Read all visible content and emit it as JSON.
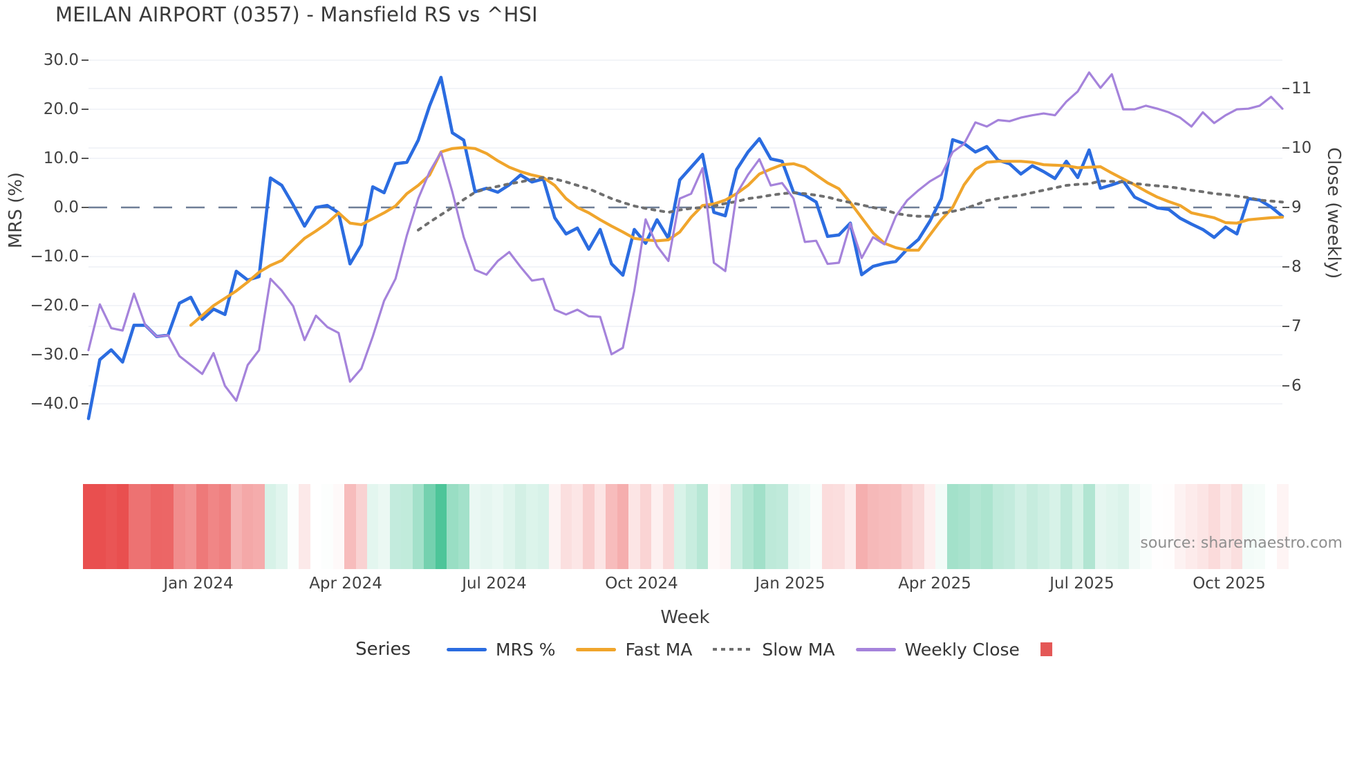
{
  "header": {
    "title": "MEILAN AIRPORT (0357) - Mansfield RS vs ^HSI"
  },
  "source_note": "source: sharemaestro.com",
  "chart_data": {
    "type": "line",
    "title": "MEILAN AIRPORT (0357) - Mansfield RS vs ^HSI",
    "xlabel": "Week",
    "ylabel_left": "MRS (%)",
    "ylabel_right": "Close (weekly)",
    "grid": true,
    "zero_line_dashed": true,
    "legend_position": "bottom",
    "legend_title": "Series",
    "x_axis": {
      "unit": "weekly, Nov 2023 - Nov 2025",
      "ticks": [
        {
          "label": "Jan 2024",
          "week": 9.67
        },
        {
          "label": "Apr 2024",
          "week": 22.62
        },
        {
          "label": "Jul 2024",
          "week": 35.69
        },
        {
          "label": "Oct 2024",
          "week": 48.64
        },
        {
          "label": "Jan 2025",
          "week": 61.71
        },
        {
          "label": "Apr 2025",
          "week": 74.42
        },
        {
          "label": "Jul 2025",
          "week": 87.37
        },
        {
          "label": "Oct 2025",
          "week": 100.32
        }
      ]
    },
    "y_left": {
      "ticks": [
        30.0,
        20.0,
        10.0,
        0.0,
        -10.0,
        -20.0,
        -30.0,
        -40.0
      ],
      "tick_labels": [
        "30.0",
        "20.0",
        "10.0",
        "0.0",
        "−10.0",
        "−20.0",
        "−30.0",
        "−40.0"
      ],
      "range": [
        -45.1,
        33.8
      ]
    },
    "y_right": {
      "ticks": [
        11,
        10,
        9,
        8,
        7,
        6
      ],
      "tick_labels": [
        "11",
        "10",
        "9",
        "8",
        "7",
        "6"
      ],
      "range": [
        5.28,
        11.79
      ]
    },
    "series": [
      {
        "name": "MRS %",
        "axis": "left",
        "color": "#2b6ce0",
        "width": 4.6,
        "dash": null,
        "values": [
          -43,
          -31,
          -29,
          -31.5,
          -24,
          -24,
          -26.3,
          -26,
          -19.5,
          -18.3,
          -22.8,
          -20.7,
          -21.8,
          -13,
          -14.8,
          -14.1,
          6,
          4.5,
          0.5,
          -3.8,
          0,
          0.4,
          -1.1,
          -11.5,
          -7.6,
          4.2,
          3,
          8.9,
          9.2,
          13.7,
          20.7,
          26.5,
          15.2,
          13.7,
          3.2,
          3.9,
          3.1,
          4.6,
          6.6,
          5.2,
          5.8,
          -2.1,
          -5.4,
          -4.2,
          -8.5,
          -4.5,
          -11.5,
          -13.8,
          -4.5,
          -7.3,
          -2.5,
          -6.3,
          5.6,
          8.2,
          10.8,
          -1,
          -1.7,
          7.7,
          11.3,
          14,
          9.9,
          9.4,
          3.1,
          2.5,
          1.1,
          -5.9,
          -5.6,
          -3.2,
          -13.7,
          -12,
          -11.4,
          -11,
          -8.5,
          -6.5,
          -2.8,
          1.8,
          13.8,
          13,
          11.3,
          12.4,
          9.6,
          8.9,
          6.8,
          8.5,
          7.3,
          5.9,
          9.4,
          6.1,
          11.7,
          3.9,
          4.6,
          5.4,
          2.1,
          1,
          -0.1,
          -0.4,
          -2.2,
          -3.4,
          -4.5,
          -6.1,
          -4,
          -5.4,
          1.8,
          1.5,
          0.1,
          -1.8
        ]
      },
      {
        "name": "Fast MA",
        "axis": "left",
        "color": "#f0a52c",
        "width": 4.2,
        "dash": null,
        "values": [
          null,
          null,
          null,
          null,
          null,
          null,
          null,
          null,
          null,
          -24,
          -22,
          -20,
          -18.5,
          -17,
          -15.2,
          -13.2,
          -11.8,
          -10.8,
          -8.5,
          -6.3,
          -4.8,
          -3.2,
          -1.1,
          -3.2,
          -3.5,
          -2.3,
          -1.1,
          0.3,
          2.8,
          4.5,
          6.6,
          11.3,
          12,
          12.2,
          12,
          11,
          9.5,
          8.2,
          7.3,
          6.6,
          6.1,
          4.5,
          1.8,
          0,
          -1.1,
          -2.5,
          -3.8,
          -5,
          -6.3,
          -6.6,
          -6.8,
          -6.6,
          -5,
          -2,
          0.4,
          0.7,
          1.5,
          2.8,
          4.5,
          6.8,
          7.8,
          8.7,
          8.9,
          8.2,
          6.6,
          5,
          3.8,
          1,
          -2.1,
          -5.2,
          -7.3,
          -8.2,
          -8.7,
          -8.7,
          -5.6,
          -2.5,
          0,
          4.6,
          7.7,
          9.2,
          9.4,
          9.4,
          9.4,
          9.2,
          8.7,
          8.6,
          8.5,
          8.1,
          8.2,
          8.3,
          7,
          5.8,
          4.6,
          3.3,
          2.1,
          1.2,
          0.4,
          -1.1,
          -1.6,
          -2.1,
          -3.1,
          -3.2,
          -2.5,
          -2.3,
          -2.1,
          -2
        ]
      },
      {
        "name": "Slow MA",
        "axis": "left",
        "color": "#6f6f6f",
        "width": 4,
        "dash": "4.5 8.5",
        "values": [
          null,
          null,
          null,
          null,
          null,
          null,
          null,
          null,
          null,
          null,
          null,
          null,
          null,
          null,
          null,
          null,
          null,
          null,
          null,
          null,
          null,
          null,
          null,
          null,
          null,
          null,
          null,
          null,
          null,
          -4.6,
          -3,
          -1.5,
          0,
          1.6,
          3.1,
          3.8,
          4.3,
          4.8,
          5.2,
          5.7,
          6.1,
          5.8,
          5.2,
          4.5,
          3.8,
          2.8,
          1.8,
          1,
          0.3,
          -0.2,
          -0.6,
          -1,
          -0.5,
          -0.2,
          0,
          0.3,
          0.8,
          1.2,
          1.8,
          2.1,
          2.5,
          2.8,
          3,
          2.8,
          2.5,
          2.1,
          1.5,
          1,
          0.5,
          0,
          -0.5,
          -1.2,
          -1.6,
          -1.8,
          -1.8,
          -1.2,
          -0.8,
          -0.3,
          0.5,
          1.4,
          1.8,
          2.2,
          2.5,
          3,
          3.5,
          4,
          4.5,
          4.7,
          4.8,
          5.4,
          5.3,
          5.2,
          4.9,
          4.6,
          4.4,
          4.2,
          3.9,
          3.5,
          3.2,
          2.8,
          2.6,
          2.3,
          2,
          1.5,
          1.3,
          1.1
        ]
      },
      {
        "name": "Weekly Close",
        "axis": "right",
        "color": "#a583db",
        "width": 3.2,
        "dash": null,
        "values": [
          6.6,
          7.37,
          6.97,
          6.93,
          7.55,
          7.02,
          6.83,
          6.85,
          6.5,
          6.35,
          6.2,
          6.55,
          6,
          5.75,
          6.35,
          6.6,
          7.8,
          7.6,
          7.34,
          6.77,
          7.18,
          6.99,
          6.89,
          6.07,
          6.29,
          6.83,
          7.43,
          7.8,
          8.53,
          9.15,
          9.6,
          9.93,
          9.26,
          8.5,
          7.95,
          7.87,
          8.1,
          8.25,
          8,
          7.77,
          7.8,
          7.28,
          7.2,
          7.28,
          7.17,
          7.16,
          6.53,
          6.64,
          7.6,
          8.8,
          8.35,
          8.1,
          9.15,
          9.23,
          9.66,
          8.07,
          7.93,
          9.23,
          9.55,
          9.81,
          9.37,
          9.41,
          9.15,
          8.42,
          8.44,
          8.05,
          8.07,
          8.73,
          8.15,
          8.5,
          8.38,
          8.85,
          9.12,
          9.29,
          9.44,
          9.55,
          9.93,
          10.07,
          10.43,
          10.36,
          10.47,
          10.45,
          10.51,
          10.55,
          10.58,
          10.55,
          10.78,
          10.95,
          11.27,
          11.01,
          11.24,
          10.65,
          10.65,
          10.71,
          10.66,
          10.6,
          10.51,
          10.36,
          10.6,
          10.42,
          10.55,
          10.65,
          10.66,
          10.71,
          10.86,
          10.66
        ]
      }
    ],
    "heatmap_strip": {
      "based_on_series": "MRS %",
      "negative_color": "#e94f4f",
      "positive_color": "#36bd8b",
      "neutral_color": "#ffffff",
      "saturation_at_abs_value": 30
    },
    "legend_extra_swatch_color": "#e45756"
  },
  "colors": {
    "grid": "#edf0f5",
    "zero_line": "#6e7e96",
    "tick_mark": "#555555"
  }
}
